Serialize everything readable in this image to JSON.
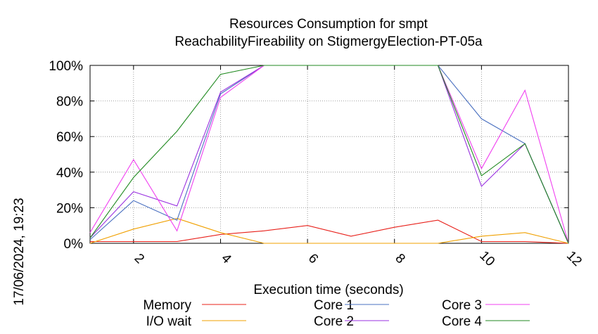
{
  "chart_data": {
    "type": "line",
    "title": "Resources Consumption for smpt",
    "subtitle": "ReachabilityFireability on StigmergyElection-PT-05a",
    "xlabel": "Execution time (seconds)",
    "ylabel": "",
    "side_label": "17/06/2024, 19:23",
    "xlim": [
      1,
      12
    ],
    "ylim": [
      0,
      100
    ],
    "x_ticks": [
      2,
      4,
      6,
      8,
      10,
      12
    ],
    "x_tick_labels": [
      "2",
      "4",
      "6",
      "8",
      "10",
      "12"
    ],
    "y_ticks": [
      0,
      20,
      40,
      60,
      80,
      100
    ],
    "y_tick_labels": [
      "0%",
      "20%",
      "40%",
      "60%",
      "80%",
      "100%"
    ],
    "grid": true,
    "legend_position": "bottom",
    "series": [
      {
        "name": "Memory",
        "color": "#e8201a",
        "x": [
          1,
          2,
          3,
          4,
          5,
          6,
          7,
          8,
          9,
          10,
          11,
          12
        ],
        "y": [
          1,
          1,
          1,
          5,
          7,
          10,
          4,
          9,
          13,
          1,
          1,
          0
        ]
      },
      {
        "name": "I/O wait",
        "color": "#f0a000",
        "x": [
          1,
          2,
          3,
          4,
          5,
          6,
          7,
          8,
          9,
          10,
          11,
          12
        ],
        "y": [
          0,
          8,
          14,
          6,
          0,
          0,
          0,
          0,
          0,
          4,
          6,
          0
        ]
      },
      {
        "name": "Core 1",
        "color": "#4a70c0",
        "x": [
          1,
          2,
          3,
          4,
          5,
          6,
          7,
          8,
          9,
          10,
          11,
          12
        ],
        "y": [
          2,
          24,
          13,
          84,
          100,
          100,
          100,
          100,
          100,
          70,
          56,
          0
        ]
      },
      {
        "name": "Core 2",
        "color": "#9a32e0",
        "x": [
          1,
          2,
          3,
          4,
          5,
          6,
          7,
          8,
          9,
          10,
          11,
          12
        ],
        "y": [
          3,
          29,
          21,
          85,
          100,
          100,
          100,
          100,
          100,
          32,
          56,
          0
        ]
      },
      {
        "name": "Core 3",
        "color": "#f040f0",
        "x": [
          1,
          2,
          3,
          4,
          5,
          6,
          7,
          8,
          9,
          10,
          11,
          12
        ],
        "y": [
          6,
          47,
          7,
          82,
          100,
          100,
          100,
          100,
          100,
          42,
          86,
          0
        ]
      },
      {
        "name": "Core 4",
        "color": "#208a20",
        "x": [
          1,
          2,
          3,
          4,
          5,
          6,
          7,
          8,
          9,
          10,
          11,
          12
        ],
        "y": [
          3,
          37,
          63,
          95,
          100,
          100,
          100,
          100,
          100,
          38,
          56,
          0
        ]
      }
    ]
  }
}
